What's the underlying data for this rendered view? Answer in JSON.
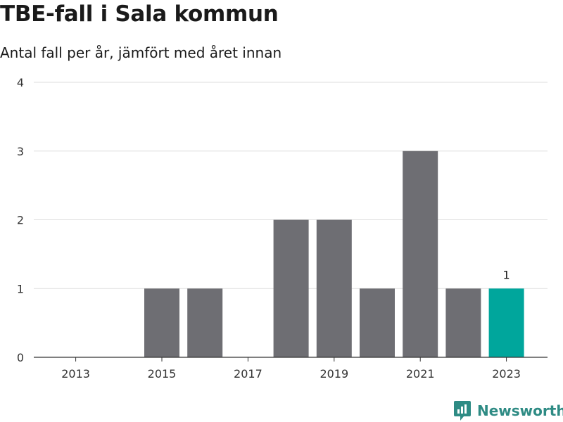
{
  "title": "TBE-fall i Sala kommun",
  "subtitle": "Antal fall per år, jämfört med året innan",
  "brand": {
    "name": "Newsworthy",
    "icon": "newsworthy-logo-icon",
    "color": "#2e8b84"
  },
  "chart_data": {
    "type": "bar",
    "categories": [
      2013,
      2014,
      2015,
      2016,
      2017,
      2018,
      2019,
      2020,
      2021,
      2022,
      2023
    ],
    "values": [
      0,
      0,
      1,
      1,
      0,
      2,
      2,
      1,
      3,
      1,
      1
    ],
    "x_tick_labels": [
      "2013",
      "2015",
      "2017",
      "2019",
      "2021",
      "2023"
    ],
    "y_ticks": [
      0,
      1,
      2,
      3,
      4
    ],
    "ylim": [
      0,
      4
    ],
    "highlight_category": 2023,
    "highlight_label": "1",
    "colors": {
      "bar": "#6e6e73",
      "highlight": "#00a69c",
      "grid": "#dddddd",
      "axis": "#333333"
    },
    "grid": true
  }
}
